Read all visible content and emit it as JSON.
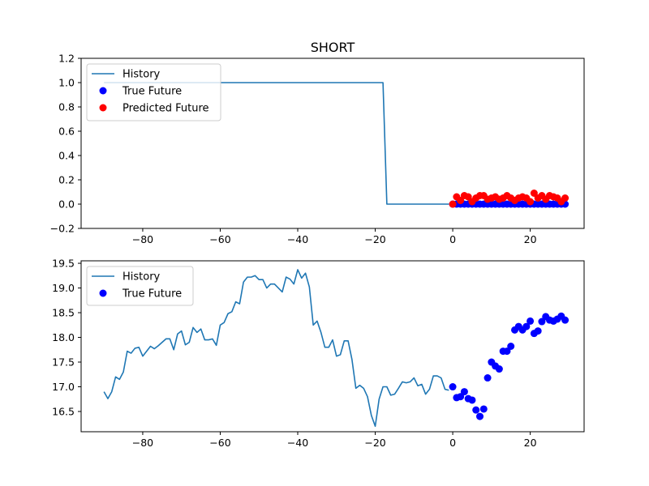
{
  "figure": {
    "title": "SHORT"
  },
  "chart_data": [
    {
      "type": "line",
      "title": "SHORT",
      "xlim": [
        -95.9,
        33.9
      ],
      "ylim": [
        -0.2,
        1.2
      ],
      "xticks": [
        -80,
        -60,
        -40,
        -20,
        0,
        20
      ],
      "xtick_labels": [
        "−80",
        "−60",
        "−40",
        "−20",
        "0",
        "20"
      ],
      "yticks": [
        -0.2,
        0.0,
        0.2,
        0.4,
        0.6,
        0.8,
        1.0,
        1.2
      ],
      "ytick_labels": [
        "−0.2",
        "0.0",
        "0.2",
        "0.4",
        "0.6",
        "0.8",
        "1.0",
        "1.2"
      ],
      "grid": false,
      "legend_position": "upper-left",
      "series": [
        {
          "name": "History",
          "kind": "line",
          "color": "#1f77b4",
          "points": [
            [
              -90,
              1.0
            ],
            [
              -19,
              1.0
            ],
            [
              -18,
              1.0
            ],
            [
              -17,
              0.0
            ],
            [
              -1,
              0.0
            ]
          ]
        },
        {
          "name": "True Future",
          "kind": "scatter",
          "color": "#0000ff",
          "x": [
            0,
            1,
            2,
            3,
            4,
            5,
            6,
            7,
            8,
            9,
            10,
            11,
            12,
            13,
            14,
            15,
            16,
            17,
            18,
            19,
            20,
            21,
            22,
            23,
            24,
            25,
            26,
            27,
            28,
            29
          ],
          "y": [
            0,
            0,
            0,
            0,
            0,
            0,
            0,
            0,
            0,
            0,
            0,
            0,
            0,
            0,
            0,
            0,
            0,
            0,
            0,
            0,
            0,
            0,
            0,
            0,
            0,
            0,
            0,
            0,
            0,
            0
          ]
        },
        {
          "name": "Predicted Future",
          "kind": "scatter",
          "color": "#ff0000",
          "x": [
            0,
            1,
            2,
            3,
            4,
            5,
            6,
            7,
            8,
            9,
            10,
            11,
            12,
            13,
            14,
            15,
            16,
            17,
            18,
            19,
            20,
            21,
            22,
            23,
            24,
            25,
            26,
            27,
            28,
            29
          ],
          "y": [
            0.0,
            0.06,
            0.03,
            0.07,
            0.06,
            0.02,
            0.05,
            0.07,
            0.07,
            0.04,
            0.05,
            0.06,
            0.04,
            0.05,
            0.07,
            0.05,
            0.03,
            0.05,
            0.06,
            0.05,
            0.02,
            0.09,
            0.05,
            0.07,
            0.04,
            0.07,
            0.06,
            0.05,
            0.02,
            0.05
          ]
        }
      ]
    },
    {
      "type": "line",
      "title": "",
      "xlim": [
        -95.9,
        33.9
      ],
      "ylim": [
        16.09,
        19.55
      ],
      "xticks": [
        -80,
        -60,
        -40,
        -20,
        0,
        20
      ],
      "xtick_labels": [
        "−80",
        "−60",
        "−40",
        "−20",
        "0",
        "20"
      ],
      "yticks": [
        16.5,
        17.0,
        17.5,
        18.0,
        18.5,
        19.0,
        19.5
      ],
      "ytick_labels": [
        "16.5",
        "17.0",
        "17.5",
        "18.0",
        "18.5",
        "19.0",
        "19.5"
      ],
      "grid": false,
      "legend_position": "upper-left",
      "series": [
        {
          "name": "History",
          "kind": "line",
          "color": "#1f77b4",
          "points": [
            [
              -90,
              16.9
            ],
            [
              -89,
              16.76
            ],
            [
              -88,
              16.9
            ],
            [
              -87,
              17.2
            ],
            [
              -86,
              17.15
            ],
            [
              -85,
              17.3
            ],
            [
              -84,
              17.72
            ],
            [
              -83,
              17.68
            ],
            [
              -82,
              17.78
            ],
            [
              -81,
              17.8
            ],
            [
              -80,
              17.62
            ],
            [
              -79,
              17.72
            ],
            [
              -78,
              17.82
            ],
            [
              -77,
              17.77
            ],
            [
              -76,
              17.83
            ],
            [
              -75,
              17.9
            ],
            [
              -74,
              17.97
            ],
            [
              -73,
              17.97
            ],
            [
              -72,
              17.75
            ],
            [
              -71,
              18.07
            ],
            [
              -70,
              18.13
            ],
            [
              -69,
              17.85
            ],
            [
              -68,
              17.9
            ],
            [
              -67,
              18.2
            ],
            [
              -66,
              18.1
            ],
            [
              -65,
              18.17
            ],
            [
              -64,
              17.95
            ],
            [
              -63,
              17.95
            ],
            [
              -62,
              17.97
            ],
            [
              -61,
              17.84
            ],
            [
              -60,
              18.25
            ],
            [
              -59,
              18.3
            ],
            [
              -58,
              18.48
            ],
            [
              -57,
              18.52
            ],
            [
              -56,
              18.72
            ],
            [
              -55,
              18.68
            ],
            [
              -54,
              19.12
            ],
            [
              -53,
              19.22
            ],
            [
              -52,
              19.22
            ],
            [
              -51,
              19.25
            ],
            [
              -50,
              19.17
            ],
            [
              -49,
              19.17
            ],
            [
              -48,
              19.0
            ],
            [
              -47,
              19.08
            ],
            [
              -46,
              19.08
            ],
            [
              -45,
              19.0
            ],
            [
              -44,
              18.92
            ],
            [
              -43,
              19.22
            ],
            [
              -42,
              19.18
            ],
            [
              -41,
              19.08
            ],
            [
              -40,
              19.37
            ],
            [
              -39,
              19.2
            ],
            [
              -38,
              19.3
            ],
            [
              -37,
              19.02
            ],
            [
              -36,
              18.25
            ],
            [
              -35,
              18.33
            ],
            [
              -34,
              18.1
            ],
            [
              -33,
              17.8
            ],
            [
              -32,
              17.8
            ],
            [
              -31,
              17.95
            ],
            [
              -30,
              17.62
            ],
            [
              -29,
              17.65
            ],
            [
              -28,
              17.93
            ],
            [
              -27,
              17.93
            ],
            [
              -26,
              17.55
            ],
            [
              -25,
              16.97
            ],
            [
              -24,
              17.03
            ],
            [
              -23,
              16.97
            ],
            [
              -22,
              16.8
            ],
            [
              -21,
              16.42
            ],
            [
              -20,
              16.2
            ],
            [
              -19,
              16.75
            ],
            [
              -18,
              17.0
            ],
            [
              -17,
              17.0
            ],
            [
              -16,
              16.83
            ],
            [
              -15,
              16.85
            ],
            [
              -14,
              16.97
            ],
            [
              -13,
              17.1
            ],
            [
              -12,
              17.08
            ],
            [
              -11,
              17.1
            ],
            [
              -10,
              17.18
            ],
            [
              -9,
              17.02
            ],
            [
              -8,
              17.05
            ],
            [
              -7,
              16.85
            ],
            [
              -6,
              16.95
            ],
            [
              -5,
              17.22
            ],
            [
              -4,
              17.22
            ],
            [
              -3,
              17.18
            ],
            [
              -2,
              16.95
            ],
            [
              -1,
              16.93
            ]
          ]
        },
        {
          "name": "True Future",
          "kind": "scatter",
          "color": "#0000ff",
          "x": [
            0,
            1,
            2,
            3,
            4,
            5,
            6,
            7,
            8,
            9,
            10,
            11,
            12,
            13,
            14,
            15,
            16,
            17,
            18,
            19,
            20,
            21,
            22,
            23,
            24,
            25,
            26,
            27,
            28,
            29
          ],
          "y": [
            17.0,
            16.78,
            16.8,
            16.9,
            16.76,
            16.73,
            16.53,
            16.4,
            16.55,
            17.18,
            17.5,
            17.42,
            17.36,
            17.72,
            17.72,
            17.82,
            18.15,
            18.22,
            18.15,
            18.22,
            18.33,
            18.08,
            18.13,
            18.32,
            18.42,
            18.35,
            18.33,
            18.37,
            18.43,
            18.35
          ]
        }
      ]
    }
  ]
}
